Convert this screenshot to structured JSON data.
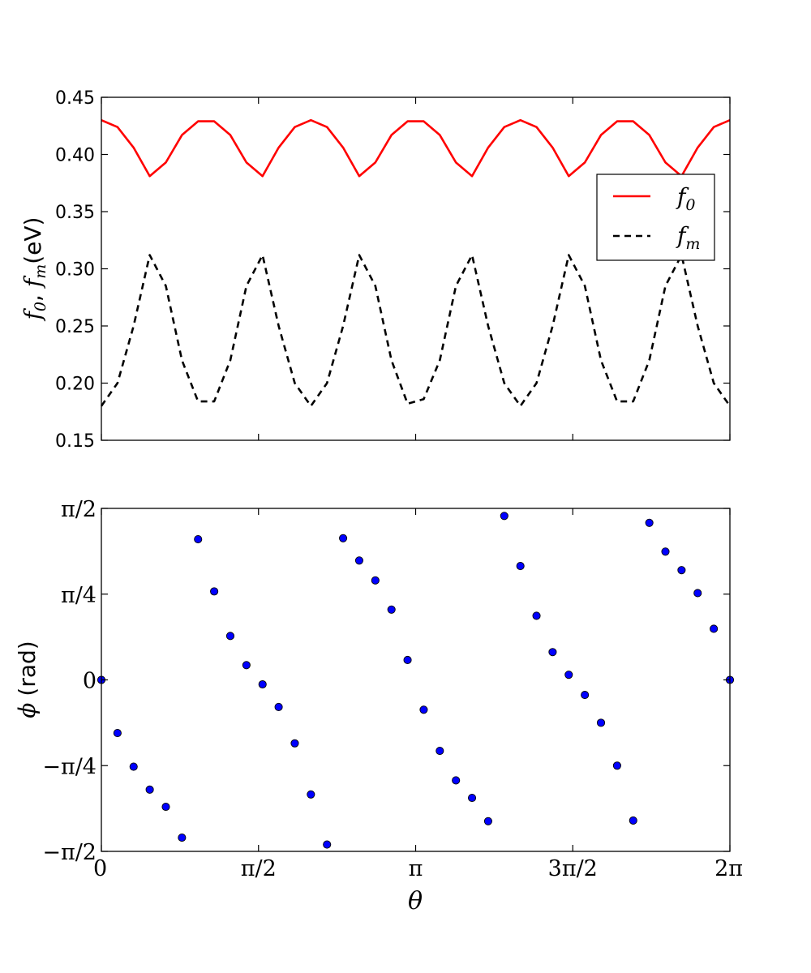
{
  "chart_data": [
    {
      "type": "line",
      "ylabel_prefix": "f",
      "ylabel_sub_a": "0",
      "ylabel_sep": ", ",
      "ylabel_sub_b": "m",
      "ylabel_unit": "(eV)",
      "ylim": [
        0.15,
        0.45
      ],
      "yticks": [
        0.15,
        0.2,
        0.25,
        0.3,
        0.35,
        0.4,
        0.45
      ],
      "ytick_labels": [
        "0.15",
        "0.20",
        "0.25",
        "0.30",
        "0.35",
        "0.40",
        "0.45"
      ],
      "xlim_pi_fraction": [
        0,
        2
      ],
      "xticks_pi_fraction": [
        0,
        0.5,
        1,
        1.5,
        2
      ],
      "grid": false,
      "legend_position": "right",
      "x_pi_fraction": [
        0.0,
        0.05128,
        0.10256,
        0.15385,
        0.20513,
        0.25641,
        0.30769,
        0.35897,
        0.41026,
        0.46154,
        0.51282,
        0.5641,
        0.61538,
        0.66667,
        0.71795,
        0.76923,
        0.82051,
        0.87179,
        0.92308,
        0.97436,
        1.02564,
        1.07692,
        1.12821,
        1.17949,
        1.23077,
        1.28205,
        1.33333,
        1.38462,
        1.4359,
        1.48718,
        1.53846,
        1.58974,
        1.64103,
        1.69231,
        1.74359,
        1.79487,
        1.84615,
        1.89744,
        1.94872,
        2.0
      ],
      "series": [
        {
          "name_base": "f",
          "name_sub": "0",
          "color": "#ff0000",
          "style": "solid",
          "values": [
            0.43,
            0.424,
            0.406,
            0.381,
            0.393,
            0.417,
            0.429,
            0.429,
            0.417,
            0.393,
            0.381,
            0.406,
            0.424,
            0.43,
            0.424,
            0.406,
            0.381,
            0.393,
            0.417,
            0.429,
            0.429,
            0.417,
            0.393,
            0.381,
            0.406,
            0.424,
            0.43,
            0.424,
            0.406,
            0.381,
            0.393,
            0.417,
            0.429,
            0.429,
            0.417,
            0.393,
            0.381,
            0.406,
            0.424,
            0.43
          ]
        },
        {
          "name_base": "f",
          "name_sub": "m",
          "color": "#000000",
          "style": "dashed",
          "values": [
            0.18,
            0.2,
            0.25,
            0.312,
            0.285,
            0.22,
            0.184,
            0.184,
            0.22,
            0.285,
            0.312,
            0.25,
            0.2,
            0.18,
            0.2,
            0.25,
            0.312,
            0.285,
            0.22,
            0.182,
            0.186,
            0.22,
            0.285,
            0.312,
            0.25,
            0.2,
            0.18,
            0.2,
            0.25,
            0.312,
            0.285,
            0.22,
            0.184,
            0.184,
            0.22,
            0.285,
            0.312,
            0.25,
            0.2,
            0.18
          ]
        }
      ]
    },
    {
      "type": "scatter",
      "ylabel_sym": "ϕ",
      "ylabel_unit": "(rad)",
      "xlabel": "θ",
      "ylim_pi_fraction": [
        -0.5,
        0.5
      ],
      "yticks_pi_fraction": [
        -0.5,
        -0.25,
        0,
        0.25,
        0.5
      ],
      "ytick_labels": [
        "−π/2",
        "−π/4",
        "0",
        "π/4",
        "π/2"
      ],
      "xlim_pi_fraction": [
        0,
        2
      ],
      "xticks_pi_fraction": [
        0,
        0.5,
        1,
        1.5,
        2
      ],
      "xtick_labels": [
        "0",
        "π/2",
        "π",
        "3π/2",
        "2π"
      ],
      "grid": false,
      "marker_color": "#0000ff",
      "x_pi_fraction": [
        0.0,
        0.05128,
        0.10256,
        0.15385,
        0.20513,
        0.25641,
        0.30769,
        0.35897,
        0.41026,
        0.46154,
        0.51282,
        0.5641,
        0.61538,
        0.66667,
        0.71795,
        0.76923,
        0.82051,
        0.87179,
        0.92308,
        0.97436,
        1.02564,
        1.07692,
        1.12821,
        1.17949,
        1.23077,
        1.28205,
        1.33333,
        1.38462,
        1.4359,
        1.48718,
        1.53846,
        1.58974,
        1.64103,
        1.69231,
        1.74359,
        1.79487,
        1.84615,
        1.89744,
        1.94872,
        2.0
      ],
      "y_pi_fraction": [
        0.0,
        -0.155,
        -0.253,
        -0.32,
        -0.37,
        -0.46,
        0.41,
        0.258,
        0.128,
        0.043,
        -0.013,
        -0.079,
        -0.185,
        -0.334,
        -0.48,
        0.413,
        0.348,
        0.29,
        0.205,
        0.058,
        -0.087,
        -0.207,
        -0.293,
        -0.344,
        -0.412,
        0.478,
        0.332,
        0.187,
        0.081,
        0.015,
        -0.044,
        -0.125,
        -0.25,
        -0.41,
        0.458,
        0.374,
        0.32,
        0.253,
        0.149,
        0.0
      ]
    }
  ]
}
